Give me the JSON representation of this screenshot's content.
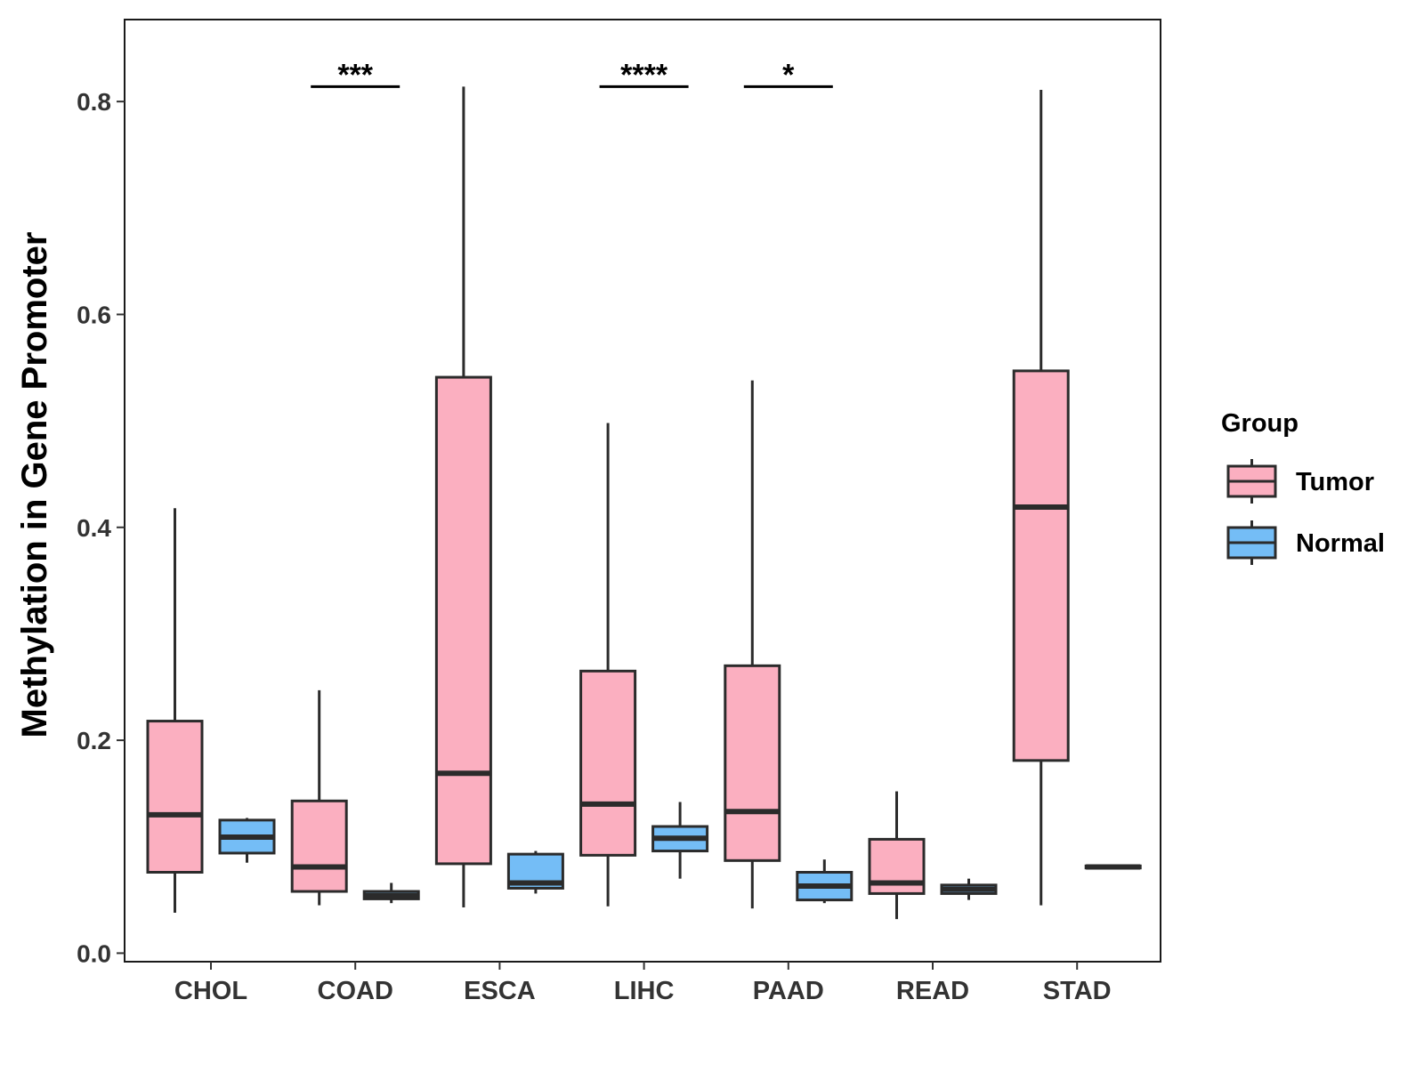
{
  "chart_data": {
    "type": "boxplot",
    "title": "",
    "xlabel": "",
    "ylabel": "Methylation in Gene Promoter",
    "ylim": [
      -0.008,
      0.877
    ],
    "yticks": [
      0.0,
      0.2,
      0.4,
      0.6,
      0.8
    ],
    "ytick_labels": [
      "0.0",
      "0.2",
      "0.4",
      "0.6",
      "0.8"
    ],
    "grid": false,
    "legend_position": "right",
    "categories": [
      "CHOL",
      "COAD",
      "ESCA",
      "LIHC",
      "PAAD",
      "READ",
      "STAD"
    ],
    "series": [
      {
        "name": "Tumor",
        "color": "#FBAFC0",
        "boxes": [
          {
            "category": "CHOL",
            "min": 0.038,
            "q1": 0.076,
            "median": 0.13,
            "q3": 0.218,
            "max": 0.418
          },
          {
            "category": "COAD",
            "min": 0.045,
            "q1": 0.058,
            "median": 0.081,
            "q3": 0.143,
            "max": 0.247
          },
          {
            "category": "ESCA",
            "min": 0.043,
            "q1": 0.084,
            "median": 0.169,
            "q3": 0.541,
            "max": 0.814
          },
          {
            "category": "LIHC",
            "min": 0.044,
            "q1": 0.092,
            "median": 0.14,
            "q3": 0.265,
            "max": 0.498
          },
          {
            "category": "PAAD",
            "min": 0.042,
            "q1": 0.087,
            "median": 0.133,
            "q3": 0.27,
            "max": 0.538
          },
          {
            "category": "READ",
            "min": 0.032,
            "q1": 0.056,
            "median": 0.066,
            "q3": 0.107,
            "max": 0.152
          },
          {
            "category": "STAD",
            "min": 0.045,
            "q1": 0.181,
            "median": 0.419,
            "q3": 0.547,
            "max": 0.811
          }
        ]
      },
      {
        "name": "Normal",
        "color": "#74BDF6",
        "boxes": [
          {
            "category": "CHOL",
            "min": 0.085,
            "q1": 0.094,
            "median": 0.109,
            "q3": 0.125,
            "max": 0.127
          },
          {
            "category": "COAD",
            "min": 0.047,
            "q1": 0.051,
            "median": 0.054,
            "q3": 0.058,
            "max": 0.066
          },
          {
            "category": "ESCA",
            "min": 0.056,
            "q1": 0.061,
            "median": 0.066,
            "q3": 0.093,
            "max": 0.096
          },
          {
            "category": "LIHC",
            "min": 0.07,
            "q1": 0.096,
            "median": 0.108,
            "q3": 0.119,
            "max": 0.142
          },
          {
            "category": "PAAD",
            "min": 0.047,
            "q1": 0.05,
            "median": 0.063,
            "q3": 0.076,
            "max": 0.088
          },
          {
            "category": "READ",
            "min": 0.05,
            "q1": 0.056,
            "median": 0.06,
            "q3": 0.064,
            "max": 0.07
          },
          {
            "category": "STAD",
            "min": 0.079,
            "q1": 0.08,
            "median": 0.081,
            "q3": 0.082,
            "max": 0.083
          }
        ]
      }
    ],
    "annotations": [
      {
        "category": "COAD",
        "label": "***",
        "y": 0.814
      },
      {
        "category": "LIHC",
        "label": "****",
        "y": 0.814
      },
      {
        "category": "PAAD",
        "label": "*",
        "y": 0.814
      }
    ],
    "legend": {
      "title": "Group",
      "entries": [
        "Tumor",
        "Normal"
      ]
    }
  }
}
